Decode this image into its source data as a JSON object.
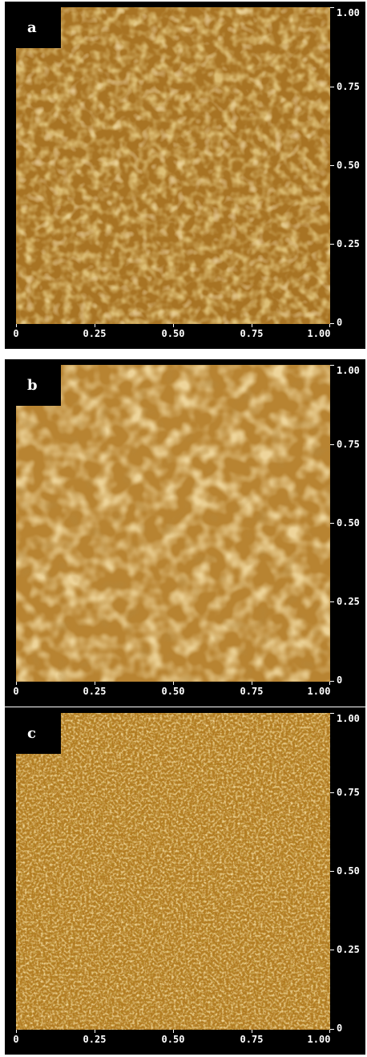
{
  "panels": [
    {
      "label": "a",
      "texture": "large-grains"
    },
    {
      "label": "b",
      "texture": "coarse-grains"
    },
    {
      "label": "c",
      "texture": "fine-grains"
    }
  ],
  "x_ticks": [
    "0",
    "0.25",
    "0.50",
    "0.75",
    "1.00"
  ],
  "y_ticks": [
    "1.00",
    "0.75",
    "0.50",
    "0.25",
    "0"
  ],
  "colors": {
    "frame": "#000000",
    "surface_base_a": "#b8842e",
    "surface_base_b": "#bf8a34",
    "surface_base_c": "#b67e22",
    "tick_text": "#ffffff"
  }
}
